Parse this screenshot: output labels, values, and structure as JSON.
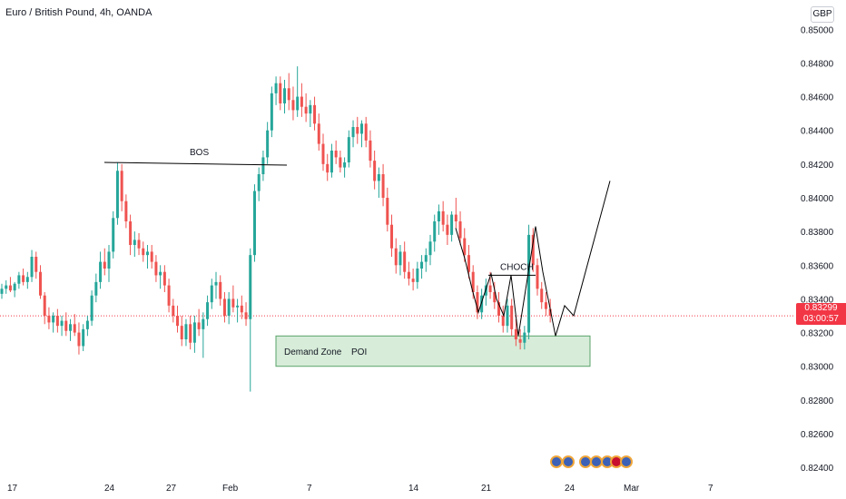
{
  "header": {
    "title": "Euro / British Pound, 4h, OANDA",
    "currency": "GBP"
  },
  "last_price": {
    "price": "0.83299",
    "countdown": "03:00:57"
  },
  "colors": {
    "up": "#26a69a",
    "down": "#ef5350",
    "zone_fill": "#d7ecd9",
    "zone_border": "#5aa36a",
    "drawing": "#000000",
    "last_price_line": "#f23645",
    "axis_text": "#131722"
  },
  "chart_data": {
    "type": "candlestick",
    "timeframe": "4h",
    "y_axis": {
      "side": "right",
      "ylim": [
        0.8232,
        0.8512
      ],
      "ticks": [
        "0.82400",
        "0.82600",
        "0.82800",
        "0.83000",
        "0.83200",
        "0.83400",
        "0.83600",
        "0.83800",
        "0.84000",
        "0.84200",
        "0.84400",
        "0.84600",
        "0.84800",
        "0.85000"
      ]
    },
    "x_axis": {
      "ticks": [
        "17",
        "24",
        "27",
        "Feb",
        "7",
        "14",
        "21",
        "24",
        "Mar",
        "7"
      ]
    },
    "grid": false,
    "candles": [
      [
        0.8343,
        0.8349,
        0.834,
        0.8346
      ],
      [
        0.8346,
        0.8351,
        0.8343,
        0.8348
      ],
      [
        0.8348,
        0.8353,
        0.8344,
        0.8345
      ],
      [
        0.8345,
        0.835,
        0.8341,
        0.8349
      ],
      [
        0.8349,
        0.8356,
        0.8346,
        0.8354
      ],
      [
        0.8354,
        0.8358,
        0.8348,
        0.835
      ],
      [
        0.835,
        0.8356,
        0.8346,
        0.8353
      ],
      [
        0.8353,
        0.8369,
        0.835,
        0.8365
      ],
      [
        0.8365,
        0.8368,
        0.8352,
        0.8356
      ],
      [
        0.8356,
        0.836,
        0.834,
        0.8342
      ],
      [
        0.8342,
        0.8344,
        0.8325,
        0.833
      ],
      [
        0.833,
        0.8335,
        0.8322,
        0.8326
      ],
      [
        0.8326,
        0.8332,
        0.832,
        0.833
      ],
      [
        0.833,
        0.8334,
        0.832,
        0.8324
      ],
      [
        0.8324,
        0.833,
        0.8318,
        0.8327
      ],
      [
        0.8327,
        0.8332,
        0.8318,
        0.8321
      ],
      [
        0.8321,
        0.8328,
        0.8315,
        0.8325
      ],
      [
        0.8325,
        0.8331,
        0.8318,
        0.832
      ],
      [
        0.832,
        0.8326,
        0.8307,
        0.8312
      ],
      [
        0.8312,
        0.8325,
        0.8309,
        0.8322
      ],
      [
        0.8322,
        0.833,
        0.8318,
        0.8327
      ],
      [
        0.8327,
        0.8345,
        0.8324,
        0.8342
      ],
      [
        0.8342,
        0.8355,
        0.8338,
        0.835
      ],
      [
        0.835,
        0.8368,
        0.8346,
        0.8362
      ],
      [
        0.8362,
        0.837,
        0.8354,
        0.8358
      ],
      [
        0.8358,
        0.8372,
        0.835,
        0.8368
      ],
      [
        0.8368,
        0.8392,
        0.8364,
        0.8388
      ],
      [
        0.8388,
        0.8421,
        0.8384,
        0.8416
      ],
      [
        0.8416,
        0.842,
        0.8392,
        0.8398
      ],
      [
        0.8398,
        0.8402,
        0.8382,
        0.8386
      ],
      [
        0.8386,
        0.839,
        0.8366,
        0.8372
      ],
      [
        0.8372,
        0.838,
        0.8365,
        0.8375
      ],
      [
        0.8375,
        0.8379,
        0.8366,
        0.837
      ],
      [
        0.837,
        0.8374,
        0.8362,
        0.8366
      ],
      [
        0.8366,
        0.8372,
        0.8358,
        0.8368
      ],
      [
        0.8368,
        0.8372,
        0.8358,
        0.8362
      ],
      [
        0.8362,
        0.8366,
        0.835,
        0.8354
      ],
      [
        0.8354,
        0.836,
        0.8346,
        0.8356
      ],
      [
        0.8356,
        0.836,
        0.8344,
        0.8348
      ],
      [
        0.8348,
        0.8352,
        0.8332,
        0.8336
      ],
      [
        0.8336,
        0.834,
        0.8326,
        0.833
      ],
      [
        0.833,
        0.8336,
        0.832,
        0.8324
      ],
      [
        0.8324,
        0.833,
        0.8312,
        0.8316
      ],
      [
        0.8316,
        0.8328,
        0.8312,
        0.8325
      ],
      [
        0.8325,
        0.833,
        0.831,
        0.8314
      ],
      [
        0.8314,
        0.833,
        0.8308,
        0.8326
      ],
      [
        0.8326,
        0.8334,
        0.8318,
        0.8322
      ],
      [
        0.8322,
        0.8332,
        0.8305,
        0.8328
      ],
      [
        0.8328,
        0.8342,
        0.8324,
        0.8338
      ],
      [
        0.8338,
        0.8352,
        0.8334,
        0.8348
      ],
      [
        0.8348,
        0.8356,
        0.834,
        0.835
      ],
      [
        0.835,
        0.8354,
        0.8336,
        0.834
      ],
      [
        0.834,
        0.8344,
        0.8326,
        0.833
      ],
      [
        0.833,
        0.8344,
        0.8325,
        0.834
      ],
      [
        0.834,
        0.8348,
        0.8332,
        0.8335
      ],
      [
        0.8335,
        0.834,
        0.8326,
        0.8336
      ],
      [
        0.8336,
        0.8342,
        0.8328,
        0.8332
      ],
      [
        0.8332,
        0.8338,
        0.8324,
        0.8328
      ],
      [
        0.8328,
        0.837,
        0.8285,
        0.8366
      ],
      [
        0.8366,
        0.8408,
        0.8362,
        0.8404
      ],
      [
        0.8404,
        0.8418,
        0.8398,
        0.8414
      ],
      [
        0.8414,
        0.8428,
        0.841,
        0.8424
      ],
      [
        0.8424,
        0.8445,
        0.842,
        0.844
      ],
      [
        0.844,
        0.8466,
        0.8436,
        0.8462
      ],
      [
        0.8462,
        0.8472,
        0.8455,
        0.8468
      ],
      [
        0.8468,
        0.8472,
        0.8452,
        0.8456
      ],
      [
        0.8456,
        0.847,
        0.845,
        0.8465
      ],
      [
        0.8465,
        0.8474,
        0.8452,
        0.8458
      ],
      [
        0.8458,
        0.8466,
        0.8446,
        0.8452
      ],
      [
        0.8452,
        0.8478,
        0.8448,
        0.846
      ],
      [
        0.846,
        0.8468,
        0.8448,
        0.8454
      ],
      [
        0.8454,
        0.8462,
        0.8445,
        0.845
      ],
      [
        0.845,
        0.8458,
        0.8442,
        0.8455
      ],
      [
        0.8455,
        0.846,
        0.844,
        0.8444
      ],
      [
        0.8444,
        0.845,
        0.8428,
        0.8432
      ],
      [
        0.8432,
        0.8438,
        0.8416,
        0.842
      ],
      [
        0.842,
        0.8426,
        0.841,
        0.8415
      ],
      [
        0.8415,
        0.8432,
        0.8412,
        0.8428
      ],
      [
        0.8428,
        0.8434,
        0.842,
        0.8424
      ],
      [
        0.8424,
        0.8428,
        0.8415,
        0.8418
      ],
      [
        0.8418,
        0.8424,
        0.8412,
        0.8421
      ],
      [
        0.8421,
        0.844,
        0.8418,
        0.8436
      ],
      [
        0.8436,
        0.8446,
        0.843,
        0.8442
      ],
      [
        0.8442,
        0.8448,
        0.8432,
        0.8438
      ],
      [
        0.8438,
        0.8446,
        0.843,
        0.8444
      ],
      [
        0.8444,
        0.8448,
        0.843,
        0.8434
      ],
      [
        0.8434,
        0.844,
        0.8418,
        0.8422
      ],
      [
        0.8422,
        0.8428,
        0.8405,
        0.841
      ],
      [
        0.841,
        0.8418,
        0.84,
        0.8414
      ],
      [
        0.8414,
        0.842,
        0.8395,
        0.84
      ],
      [
        0.84,
        0.8406,
        0.838,
        0.8384
      ],
      [
        0.8384,
        0.839,
        0.8365,
        0.837
      ],
      [
        0.837,
        0.8376,
        0.8355,
        0.836
      ],
      [
        0.836,
        0.8372,
        0.8354,
        0.8368
      ],
      [
        0.8368,
        0.8374,
        0.8352,
        0.8356
      ],
      [
        0.8356,
        0.8362,
        0.8348,
        0.8352
      ],
      [
        0.8352,
        0.8358,
        0.8345,
        0.835
      ],
      [
        0.835,
        0.8362,
        0.8346,
        0.8358
      ],
      [
        0.8358,
        0.8366,
        0.8352,
        0.8362
      ],
      [
        0.8362,
        0.837,
        0.8356,
        0.8366
      ],
      [
        0.8366,
        0.8378,
        0.836,
        0.8374
      ],
      [
        0.8374,
        0.839,
        0.8368,
        0.8386
      ],
      [
        0.8386,
        0.8396,
        0.8378,
        0.8392
      ],
      [
        0.8392,
        0.8398,
        0.838,
        0.8384
      ],
      [
        0.8384,
        0.839,
        0.8372,
        0.8378
      ],
      [
        0.8378,
        0.8392,
        0.8374,
        0.839
      ],
      [
        0.839,
        0.84,
        0.8382,
        0.8386
      ],
      [
        0.8386,
        0.8392,
        0.8372,
        0.8376
      ],
      [
        0.8376,
        0.8382,
        0.8362,
        0.8366
      ],
      [
        0.8366,
        0.8372,
        0.8352,
        0.8356
      ],
      [
        0.8356,
        0.836,
        0.834,
        0.8344
      ],
      [
        0.8344,
        0.8348,
        0.8328,
        0.8332
      ],
      [
        0.8332,
        0.8346,
        0.8328,
        0.8342
      ],
      [
        0.8342,
        0.8352,
        0.8336,
        0.8348
      ],
      [
        0.8348,
        0.8356,
        0.834,
        0.8344
      ],
      [
        0.8344,
        0.835,
        0.8334,
        0.8338
      ],
      [
        0.8338,
        0.8344,
        0.8326,
        0.833
      ],
      [
        0.833,
        0.8336,
        0.832,
        0.8324
      ],
      [
        0.8324,
        0.834,
        0.832,
        0.8336
      ],
      [
        0.8336,
        0.834,
        0.8318,
        0.8322
      ],
      [
        0.8322,
        0.8328,
        0.8312,
        0.8316
      ],
      [
        0.8316,
        0.8322,
        0.831,
        0.8314
      ],
      [
        0.8314,
        0.8324,
        0.831,
        0.832
      ],
      [
        0.832,
        0.8384,
        0.8316,
        0.8378
      ],
      [
        0.8378,
        0.8382,
        0.8356,
        0.836
      ],
      [
        0.836,
        0.8364,
        0.8342,
        0.8346
      ],
      [
        0.8346,
        0.835,
        0.8334,
        0.8338
      ],
      [
        0.8338,
        0.8344,
        0.833,
        0.8334
      ],
      [
        0.8334,
        0.834,
        0.8326,
        0.833
      ]
    ],
    "demand_zone": {
      "price_top": 0.8318,
      "price_bottom": 0.83,
      "label_left": "Demand Zone",
      "label_right": "POI"
    },
    "bos": {
      "price": 0.8421,
      "label": "BOS"
    },
    "choch": {
      "price": 0.8354,
      "label": "CHOCH"
    },
    "projection_path": [
      0.8382,
      0.8364,
      0.8346,
      0.8332,
      0.8342,
      0.8355,
      0.834,
      0.833,
      0.8354,
      0.8318,
      0.8383,
      0.8356,
      0.8318,
      0.8336,
      0.833,
      0.841
    ],
    "last_price": 0.83299
  }
}
